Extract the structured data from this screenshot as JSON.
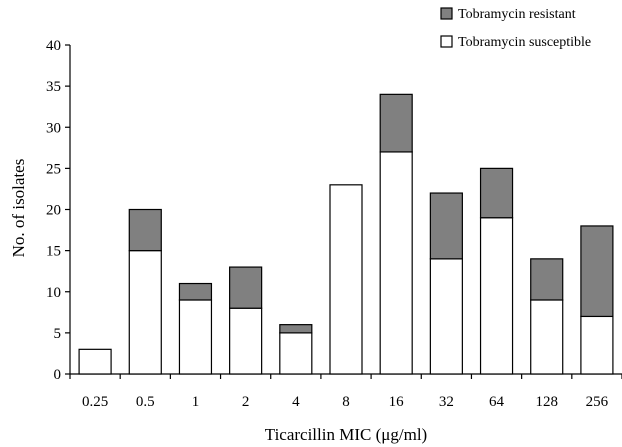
{
  "chart_data": {
    "type": "bar",
    "stacked": true,
    "categories": [
      "0.25",
      "0.5",
      "1",
      "2",
      "4",
      "8",
      "16",
      "32",
      "64",
      "128",
      "256"
    ],
    "series": [
      {
        "name": "Tobramycin susceptible",
        "color": "#ffffff",
        "values": [
          3,
          15,
          9,
          8,
          5,
          23,
          27,
          14,
          19,
          9,
          7
        ]
      },
      {
        "name": "Tobramycin resistant",
        "color": "#808080",
        "values": [
          0,
          5,
          2,
          5,
          1,
          0,
          7,
          8,
          6,
          5,
          11
        ]
      }
    ],
    "xlabel": "Ticarcillin MIC (μg/ml)",
    "ylabel": "No. of isolates",
    "ylim": [
      0,
      40
    ],
    "yticks": [
      "0",
      "5",
      "10",
      "15",
      "20",
      "25",
      "30",
      "35",
      "40"
    ],
    "grid": false,
    "legend_position": "top-right"
  }
}
